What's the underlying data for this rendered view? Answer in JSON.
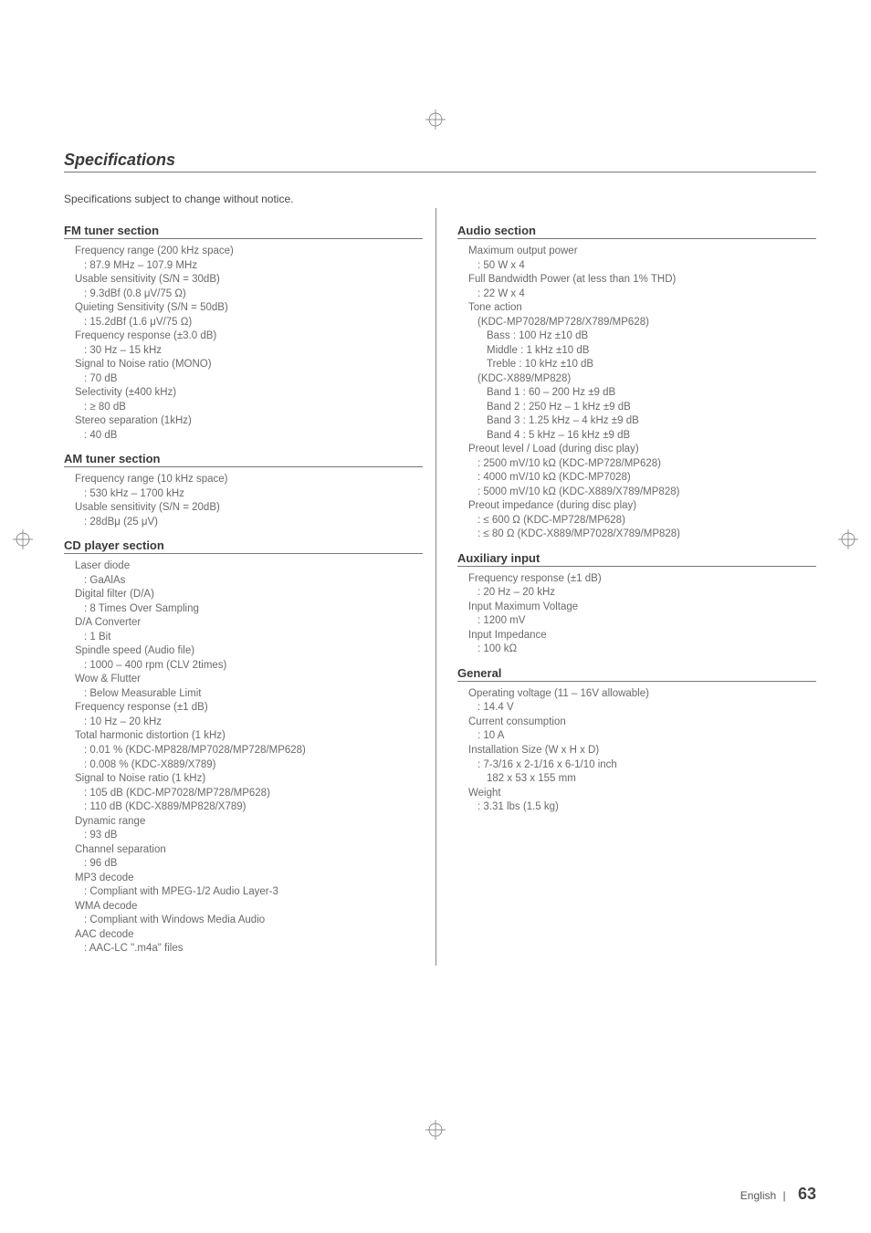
{
  "title": "Specifications",
  "intro": "Specifications subject to change without notice.",
  "registration_color": "#6e6e6e",
  "footer": {
    "lang": "English",
    "sep": "|",
    "page": "63"
  },
  "left_col": [
    {
      "heading": "FM tuner section",
      "items": [
        {
          "label": "Frequency range (200 kHz space)",
          "values": [
            ": 87.9 MHz – 107.9 MHz"
          ]
        },
        {
          "label": "Usable sensitivity (S/N = 30dB)",
          "values": [
            ": 9.3dBf (0.8 μV/75 Ω)"
          ]
        },
        {
          "label": "Quieting Sensitivity (S/N = 50dB)",
          "values": [
            ": 15.2dBf (1.6 μV/75 Ω)"
          ]
        },
        {
          "label": "Frequency response (±3.0 dB)",
          "values": [
            ": 30 Hz – 15 kHz"
          ]
        },
        {
          "label": "Signal to Noise ratio (MONO)",
          "values": [
            ": 70 dB"
          ]
        },
        {
          "label": "Selectivity (±400 kHz)",
          "values": [
            ": ≥ 80 dB"
          ]
        },
        {
          "label": "Stereo separation (1kHz)",
          "values": [
            ": 40 dB"
          ]
        }
      ]
    },
    {
      "heading": "AM tuner section",
      "items": [
        {
          "label": "Frequency range (10 kHz space)",
          "values": [
            ": 530 kHz – 1700 kHz"
          ]
        },
        {
          "label": "Usable sensitivity (S/N = 20dB)",
          "values": [
            ": 28dBμ (25 μV)"
          ]
        }
      ]
    },
    {
      "heading": "CD player section",
      "items": [
        {
          "label": "Laser diode",
          "values": [
            ": GaAlAs"
          ]
        },
        {
          "label": "Digital filter (D/A)",
          "values": [
            ": 8 Times Over Sampling"
          ]
        },
        {
          "label": "D/A Converter",
          "values": [
            ": 1 Bit"
          ]
        },
        {
          "label": "Spindle speed (Audio file)",
          "values": [
            ": 1000 – 400 rpm (CLV 2times)"
          ]
        },
        {
          "label": "Wow & Flutter",
          "values": [
            ": Below Measurable Limit"
          ]
        },
        {
          "label": "Frequency response (±1 dB)",
          "values": [
            ": 10 Hz – 20 kHz"
          ]
        },
        {
          "label": "Total harmonic distortion (1 kHz)",
          "values": [
            ": 0.01 % (KDC-MP828/MP7028/MP728/MP628)",
            ": 0.008 % (KDC-X889/X789)"
          ]
        },
        {
          "label": "Signal to Noise ratio (1 kHz)",
          "values": [
            ": 105 dB (KDC-MP7028/MP728/MP628)",
            ": 110 dB (KDC-X889/MP828/X789)"
          ]
        },
        {
          "label": "Dynamic range",
          "values": [
            ": 93 dB"
          ]
        },
        {
          "label": "Channel separation",
          "values": [
            ": 96 dB"
          ]
        },
        {
          "label": "MP3 decode",
          "values": [
            ": Compliant with MPEG-1/2 Audio Layer-3"
          ]
        },
        {
          "label": "WMA decode",
          "values": [
            ": Compliant with Windows Media Audio"
          ]
        },
        {
          "label": "AAC decode",
          "values": [
            ": AAC-LC \".m4a\" files"
          ]
        }
      ]
    }
  ],
  "right_col": [
    {
      "heading": "Audio section",
      "items": [
        {
          "label": "Maximum output power",
          "values": [
            ": 50 W x 4"
          ]
        },
        {
          "label": "Full Bandwidth Power (at less than 1% THD)",
          "values": [
            ": 22 W x 4"
          ]
        },
        {
          "label": "Tone action",
          "values": [
            "(KDC-MP7028/MP728/X789/MP628)",
            {
              "sub": "Bass : 100 Hz ±10 dB"
            },
            {
              "sub": "Middle : 1 kHz ±10 dB"
            },
            {
              "sub": "Treble : 10 kHz ±10 dB"
            },
            "(KDC-X889/MP828)",
            {
              "sub": "Band 1 : 60 – 200 Hz ±9 dB"
            },
            {
              "sub": "Band 2 : 250 Hz – 1 kHz ±9 dB"
            },
            {
              "sub": "Band 3 : 1.25 kHz – 4 kHz ±9 dB"
            },
            {
              "sub": "Band 4 : 5 kHz – 16 kHz ±9 dB"
            }
          ]
        },
        {
          "label": "Preout level / Load (during disc play)",
          "values": [
            ": 2500 mV/10 kΩ (KDC-MP728/MP628)",
            ": 4000 mV/10 kΩ (KDC-MP7028)",
            ": 5000 mV/10 kΩ (KDC-X889/X789/MP828)"
          ]
        },
        {
          "label": "Preout impedance (during disc play)",
          "values": [
            ": ≤ 600 Ω (KDC-MP728/MP628)",
            ": ≤ 80 Ω (KDC-X889/MP7028/X789/MP828)"
          ]
        }
      ]
    },
    {
      "heading": "Auxiliary input",
      "items": [
        {
          "label": "Frequency response (±1 dB)",
          "values": [
            ": 20 Hz – 20 kHz"
          ]
        },
        {
          "label": "Input Maximum Voltage",
          "values": [
            ": 1200 mV"
          ]
        },
        {
          "label": "Input Impedance",
          "values": [
            ": 100 kΩ"
          ]
        }
      ]
    },
    {
      "heading": "General",
      "items": [
        {
          "label": "Operating voltage (11 – 16V allowable)",
          "values": [
            ": 14.4 V"
          ]
        },
        {
          "label": "Current consumption",
          "values": [
            ": 10 A"
          ]
        },
        {
          "label": "Installation Size (W x H x D)",
          "values": [
            ": 7-3/16 x 2-1/16 x 6-1/10 inch",
            {
              "sub": "182 x 53 x 155 mm"
            }
          ]
        },
        {
          "label": "Weight",
          "values": [
            ": 3.31 lbs (1.5 kg)"
          ]
        }
      ]
    }
  ]
}
